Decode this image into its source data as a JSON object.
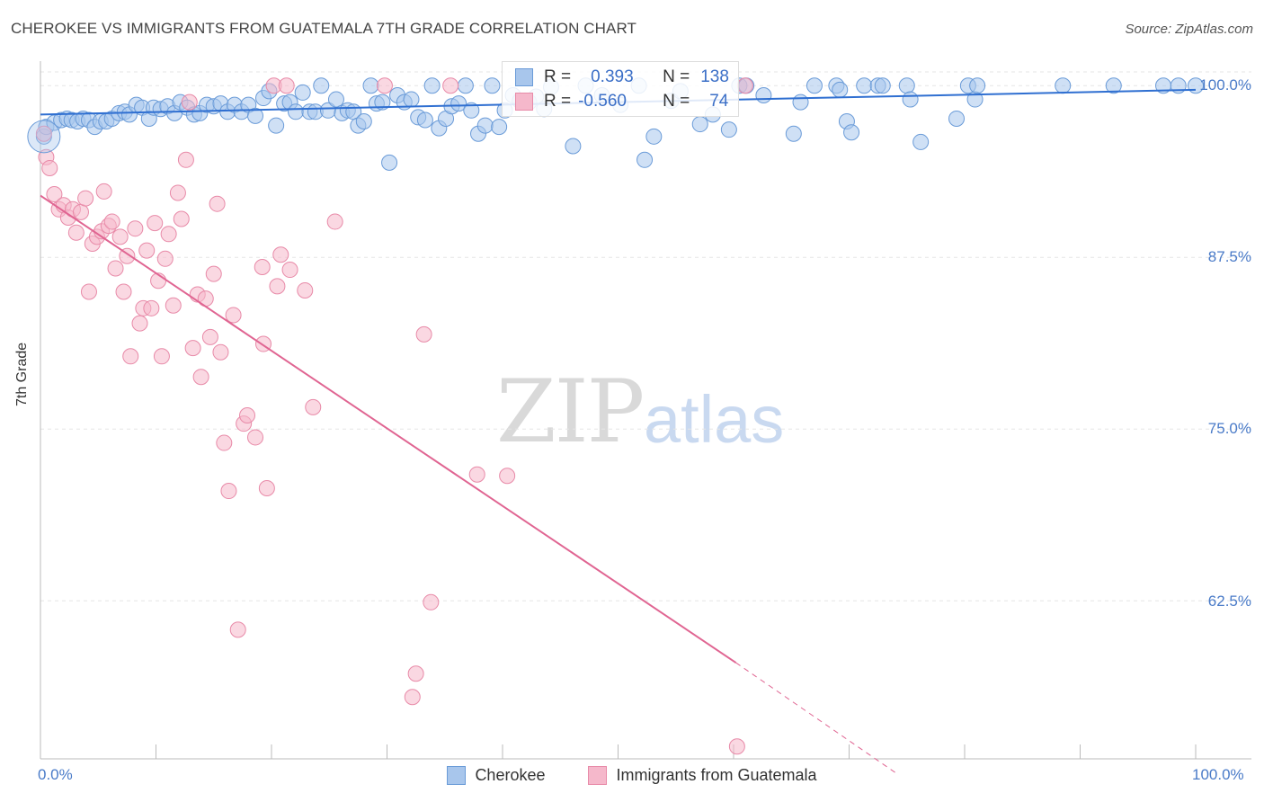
{
  "title": "CHEROKEE VS IMMIGRANTS FROM GUATEMALA 7TH GRADE CORRELATION CHART",
  "source": "Source: ZipAtlas.com",
  "watermark": {
    "zip": "ZIP",
    "atlas": "atlas"
  },
  "legend": {
    "series1": {
      "r_label": "R =",
      "r_value": "0.393",
      "n_label": "N =",
      "n_value": "138"
    },
    "series2": {
      "r_label": "R =",
      "r_value": "-0.560",
      "n_label": "N =",
      "n_value": "74"
    }
  },
  "colors": {
    "blue_fill": "#a8c6ec",
    "blue_stroke": "#6a9bd8",
    "blue_line": "#2f6fd1",
    "pink_fill": "#f5b8cb",
    "pink_stroke": "#e88aa8",
    "pink_line": "#e06592",
    "grid": "#e5e5e5",
    "axis_text": "#4a7bc8"
  },
  "chart_data": {
    "type": "scatter",
    "title": "CHEROKEE VS IMMIGRANTS FROM GUATEMALA 7TH GRADE CORRELATION CHART",
    "xlabel": "",
    "ylabel": "7th Grade",
    "xlim": [
      0,
      100
    ],
    "ylim": [
      51,
      101
    ],
    "x_tick_labels": [
      "0.0%",
      "100.0%"
    ],
    "y_ticks": [
      62.5,
      75.0,
      87.5,
      100.0
    ],
    "y_tick_labels": [
      "62.5%",
      "75.0%",
      "87.5%",
      "100.0%"
    ],
    "series": [
      {
        "name": "Cherokee",
        "trend": {
          "x": [
            0,
            100
          ],
          "y": [
            97.9,
            99.7
          ]
        },
        "points": [
          [
            0.3,
            96.3
          ],
          [
            0.5,
            97.0
          ],
          [
            1.2,
            97.3
          ],
          [
            1.8,
            97.5
          ],
          [
            2.3,
            97.6
          ],
          [
            2.7,
            97.5
          ],
          [
            3.2,
            97.4
          ],
          [
            3.7,
            97.6
          ],
          [
            4.2,
            97.5
          ],
          [
            4.7,
            97.0
          ],
          [
            5.2,
            97.4
          ],
          [
            5.7,
            97.4
          ],
          [
            6.2,
            97.6
          ],
          [
            6.8,
            98.0
          ],
          [
            7.3,
            98.1
          ],
          [
            7.7,
            97.9
          ],
          [
            8.3,
            98.6
          ],
          [
            8.8,
            98.4
          ],
          [
            9.4,
            97.6
          ],
          [
            9.8,
            98.4
          ],
          [
            10.4,
            98.3
          ],
          [
            11.0,
            98.5
          ],
          [
            11.6,
            98.0
          ],
          [
            12.1,
            98.8
          ],
          [
            12.7,
            98.4
          ],
          [
            13.3,
            97.9
          ],
          [
            13.8,
            98.0
          ],
          [
            14.4,
            98.6
          ],
          [
            15.0,
            98.5
          ],
          [
            15.6,
            98.7
          ],
          [
            16.2,
            98.1
          ],
          [
            16.8,
            98.6
          ],
          [
            17.4,
            98.1
          ],
          [
            18.0,
            98.6
          ],
          [
            18.6,
            97.8
          ],
          [
            19.3,
            99.1
          ],
          [
            19.8,
            99.6
          ],
          [
            20.4,
            97.1
          ],
          [
            21.1,
            98.7
          ],
          [
            21.6,
            98.8
          ],
          [
            22.1,
            98.1
          ],
          [
            22.7,
            99.5
          ],
          [
            23.3,
            98.1
          ],
          [
            23.8,
            98.1
          ],
          [
            24.3,
            100.0
          ],
          [
            24.9,
            98.2
          ],
          [
            25.6,
            99.0
          ],
          [
            26.1,
            98.0
          ],
          [
            26.6,
            98.2
          ],
          [
            27.1,
            98.1
          ],
          [
            27.5,
            97.1
          ],
          [
            28.0,
            97.4
          ],
          [
            28.6,
            100.0
          ],
          [
            29.1,
            98.7
          ],
          [
            29.6,
            98.8
          ],
          [
            30.2,
            94.4
          ],
          [
            30.9,
            99.3
          ],
          [
            31.5,
            98.8
          ],
          [
            32.1,
            99.0
          ],
          [
            32.7,
            97.7
          ],
          [
            33.3,
            97.5
          ],
          [
            33.9,
            100.0
          ],
          [
            34.5,
            96.9
          ],
          [
            35.1,
            97.6
          ],
          [
            35.6,
            98.5
          ],
          [
            36.2,
            98.7
          ],
          [
            36.8,
            100.0
          ],
          [
            37.3,
            98.2
          ],
          [
            37.9,
            96.5
          ],
          [
            38.5,
            97.1
          ],
          [
            39.1,
            100.0
          ],
          [
            39.7,
            97.0
          ],
          [
            40.2,
            98.2
          ],
          [
            40.9,
            99.3
          ],
          [
            41.5,
            98.9
          ],
          [
            42.3,
            98.8
          ],
          [
            42.9,
            99.2
          ],
          [
            43.6,
            98.3
          ],
          [
            44.2,
            99.9
          ],
          [
            46.1,
            95.6
          ],
          [
            47.2,
            100.0
          ],
          [
            48.6,
            99.3
          ],
          [
            50.2,
            98.6
          ],
          [
            51.8,
            100.0
          ],
          [
            52.3,
            94.6
          ],
          [
            53.1,
            96.3
          ],
          [
            54.6,
            98.9
          ],
          [
            55.4,
            99.6
          ],
          [
            57.1,
            97.2
          ],
          [
            58.2,
            97.9
          ],
          [
            59.6,
            96.8
          ],
          [
            60.5,
            100.0
          ],
          [
            61.1,
            100.0
          ],
          [
            62.6,
            99.3
          ],
          [
            65.2,
            96.5
          ],
          [
            65.8,
            98.8
          ],
          [
            67.0,
            100.0
          ],
          [
            68.9,
            100.0
          ],
          [
            69.2,
            99.7
          ],
          [
            69.8,
            97.4
          ],
          [
            70.2,
            96.6
          ],
          [
            71.3,
            100.0
          ],
          [
            72.5,
            100.0
          ],
          [
            72.9,
            100.0
          ],
          [
            75.0,
            100.0
          ],
          [
            75.3,
            99.0
          ],
          [
            76.2,
            95.9
          ],
          [
            79.3,
            97.6
          ],
          [
            80.3,
            100.0
          ],
          [
            80.9,
            99.0
          ],
          [
            81.1,
            100.0
          ],
          [
            88.5,
            100.0
          ],
          [
            92.9,
            100.0
          ],
          [
            97.2,
            100.0
          ],
          [
            98.5,
            100.0
          ],
          [
            100.0,
            100.0
          ]
        ]
      },
      {
        "name": "Immigrants from Guatemala",
        "trend": {
          "x": [
            0,
            60.2
          ],
          "y": [
            92.0,
            58.0
          ]
        },
        "trend_dashed": {
          "x": [
            60.2,
            74.0
          ],
          "y": [
            58.0,
            50.0
          ]
        },
        "points": [
          [
            0.3,
            96.5
          ],
          [
            0.5,
            94.8
          ],
          [
            0.8,
            94.0
          ],
          [
            1.2,
            92.1
          ],
          [
            1.6,
            91.0
          ],
          [
            2.0,
            91.3
          ],
          [
            2.4,
            90.4
          ],
          [
            2.8,
            91.0
          ],
          [
            3.1,
            89.3
          ],
          [
            3.5,
            90.8
          ],
          [
            3.9,
            91.8
          ],
          [
            4.2,
            85.0
          ],
          [
            4.5,
            88.5
          ],
          [
            4.9,
            89.0
          ],
          [
            5.3,
            89.4
          ],
          [
            5.5,
            92.3
          ],
          [
            5.9,
            89.8
          ],
          [
            6.2,
            90.1
          ],
          [
            6.5,
            86.7
          ],
          [
            6.9,
            89.0
          ],
          [
            7.2,
            85.0
          ],
          [
            7.5,
            87.6
          ],
          [
            7.8,
            80.3
          ],
          [
            8.2,
            89.6
          ],
          [
            8.6,
            82.7
          ],
          [
            8.9,
            83.8
          ],
          [
            9.2,
            88.0
          ],
          [
            9.6,
            83.8
          ],
          [
            9.9,
            90.0
          ],
          [
            10.2,
            85.8
          ],
          [
            10.5,
            80.3
          ],
          [
            10.8,
            87.4
          ],
          [
            11.1,
            89.2
          ],
          [
            11.5,
            84.0
          ],
          [
            11.9,
            92.2
          ],
          [
            12.2,
            90.3
          ],
          [
            12.6,
            94.6
          ],
          [
            12.9,
            98.8
          ],
          [
            13.2,
            80.9
          ],
          [
            13.6,
            84.8
          ],
          [
            13.9,
            78.8
          ],
          [
            14.3,
            84.5
          ],
          [
            14.7,
            81.7
          ],
          [
            15.0,
            86.3
          ],
          [
            15.3,
            91.4
          ],
          [
            15.6,
            80.6
          ],
          [
            15.9,
            74.0
          ],
          [
            16.3,
            70.5
          ],
          [
            16.7,
            83.3
          ],
          [
            17.1,
            60.4
          ],
          [
            17.6,
            75.4
          ],
          [
            17.9,
            76.0
          ],
          [
            18.6,
            74.4
          ],
          [
            19.2,
            86.8
          ],
          [
            19.3,
            81.2
          ],
          [
            19.6,
            70.7
          ],
          [
            20.2,
            100.0
          ],
          [
            20.5,
            85.4
          ],
          [
            20.8,
            87.7
          ],
          [
            21.3,
            100.0
          ],
          [
            21.6,
            86.6
          ],
          [
            22.9,
            85.1
          ],
          [
            23.6,
            76.6
          ],
          [
            25.5,
            90.1
          ],
          [
            29.8,
            100.0
          ],
          [
            32.2,
            55.5
          ],
          [
            32.5,
            57.2
          ],
          [
            33.2,
            81.9
          ],
          [
            33.8,
            62.4
          ],
          [
            35.5,
            100.0
          ],
          [
            37.8,
            71.7
          ],
          [
            40.4,
            71.6
          ],
          [
            60.3,
            51.9
          ],
          [
            61.0,
            100.0
          ]
        ]
      }
    ]
  },
  "bottom_legend": {
    "series1_label": "Cherokee",
    "series2_label": "Immigrants from Guatemala"
  }
}
